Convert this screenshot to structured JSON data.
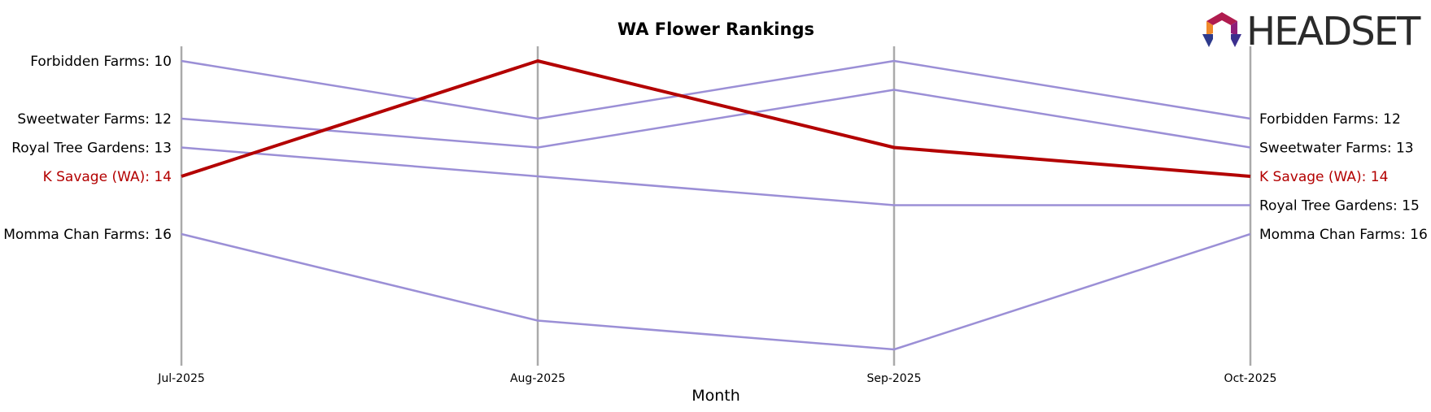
{
  "logo": {
    "text": "HEADSET"
  },
  "chart_data": {
    "type": "line",
    "title": "WA Flower Rankings",
    "xlabel": "Month",
    "ylabel": "",
    "categories": [
      "Jul-2025",
      "Aug-2025",
      "Sep-2025",
      "Oct-2025"
    ],
    "y_inverted": true,
    "ylim": [
      20,
      9.5
    ],
    "grid": "vertical",
    "highlight_color": "#b30000",
    "base_color": "#9b8fd6",
    "axis_line_color": "#aaaaaa",
    "series": [
      {
        "name": "Forbidden Farms",
        "values": [
          10,
          12,
          10,
          12
        ],
        "highlight": false,
        "start_label": "Forbidden Farms: 10",
        "end_label": "Forbidden Farms: 12"
      },
      {
        "name": "Sweetwater Farms",
        "values": [
          12,
          13,
          11,
          13
        ],
        "highlight": false,
        "start_label": "Sweetwater Farms: 12",
        "end_label": "Sweetwater Farms: 13"
      },
      {
        "name": "Royal Tree Gardens",
        "values": [
          13,
          14,
          15,
          15
        ],
        "highlight": false,
        "start_label": "Royal Tree Gardens: 13",
        "end_label": "Royal Tree Gardens: 15"
      },
      {
        "name": "Momma Chan Farms",
        "values": [
          16,
          19,
          20,
          16
        ],
        "highlight": false,
        "start_label": "Momma Chan Farms: 16",
        "end_label": "Momma Chan Farms: 16"
      },
      {
        "name": "K Savage (WA)",
        "values": [
          14,
          10,
          13,
          14
        ],
        "highlight": true,
        "start_label": "K Savage (WA): 14",
        "end_label": "K Savage (WA): 14"
      }
    ]
  }
}
